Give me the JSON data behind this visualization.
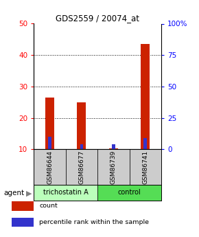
{
  "title": "GDS2559 / 20074_at",
  "samples": [
    "GSM86644",
    "GSM86677",
    "GSM86739",
    "GSM86741"
  ],
  "red_values": [
    26.5,
    25.0,
    10.3,
    43.5
  ],
  "blue_values": [
    14.0,
    11.5,
    11.5,
    13.5
  ],
  "red_base": 10.0,
  "red_color": "#cc2200",
  "blue_color": "#3333cc",
  "ylim_left": [
    10,
    50
  ],
  "ylim_right": [
    0,
    100
  ],
  "yticks_left": [
    10,
    20,
    30,
    40,
    50
  ],
  "yticks_right": [
    0,
    25,
    50,
    75,
    100
  ],
  "ytick_labels_right": [
    "0",
    "25",
    "50",
    "75",
    "100%"
  ],
  "grid_lines": [
    20,
    30,
    40
  ],
  "groups": [
    {
      "label": "trichostatin A",
      "span": [
        0,
        2
      ],
      "color": "#bbffbb"
    },
    {
      "label": "control",
      "span": [
        2,
        4
      ],
      "color": "#55dd55"
    }
  ],
  "agent_label": "agent",
  "legend": [
    {
      "label": "count",
      "color": "#cc2200"
    },
    {
      "label": "percentile rank within the sample",
      "color": "#3333cc"
    }
  ],
  "red_bar_width": 0.28,
  "blue_bar_width": 0.1,
  "sample_box_color": "#cccccc",
  "background_color": "#ffffff"
}
